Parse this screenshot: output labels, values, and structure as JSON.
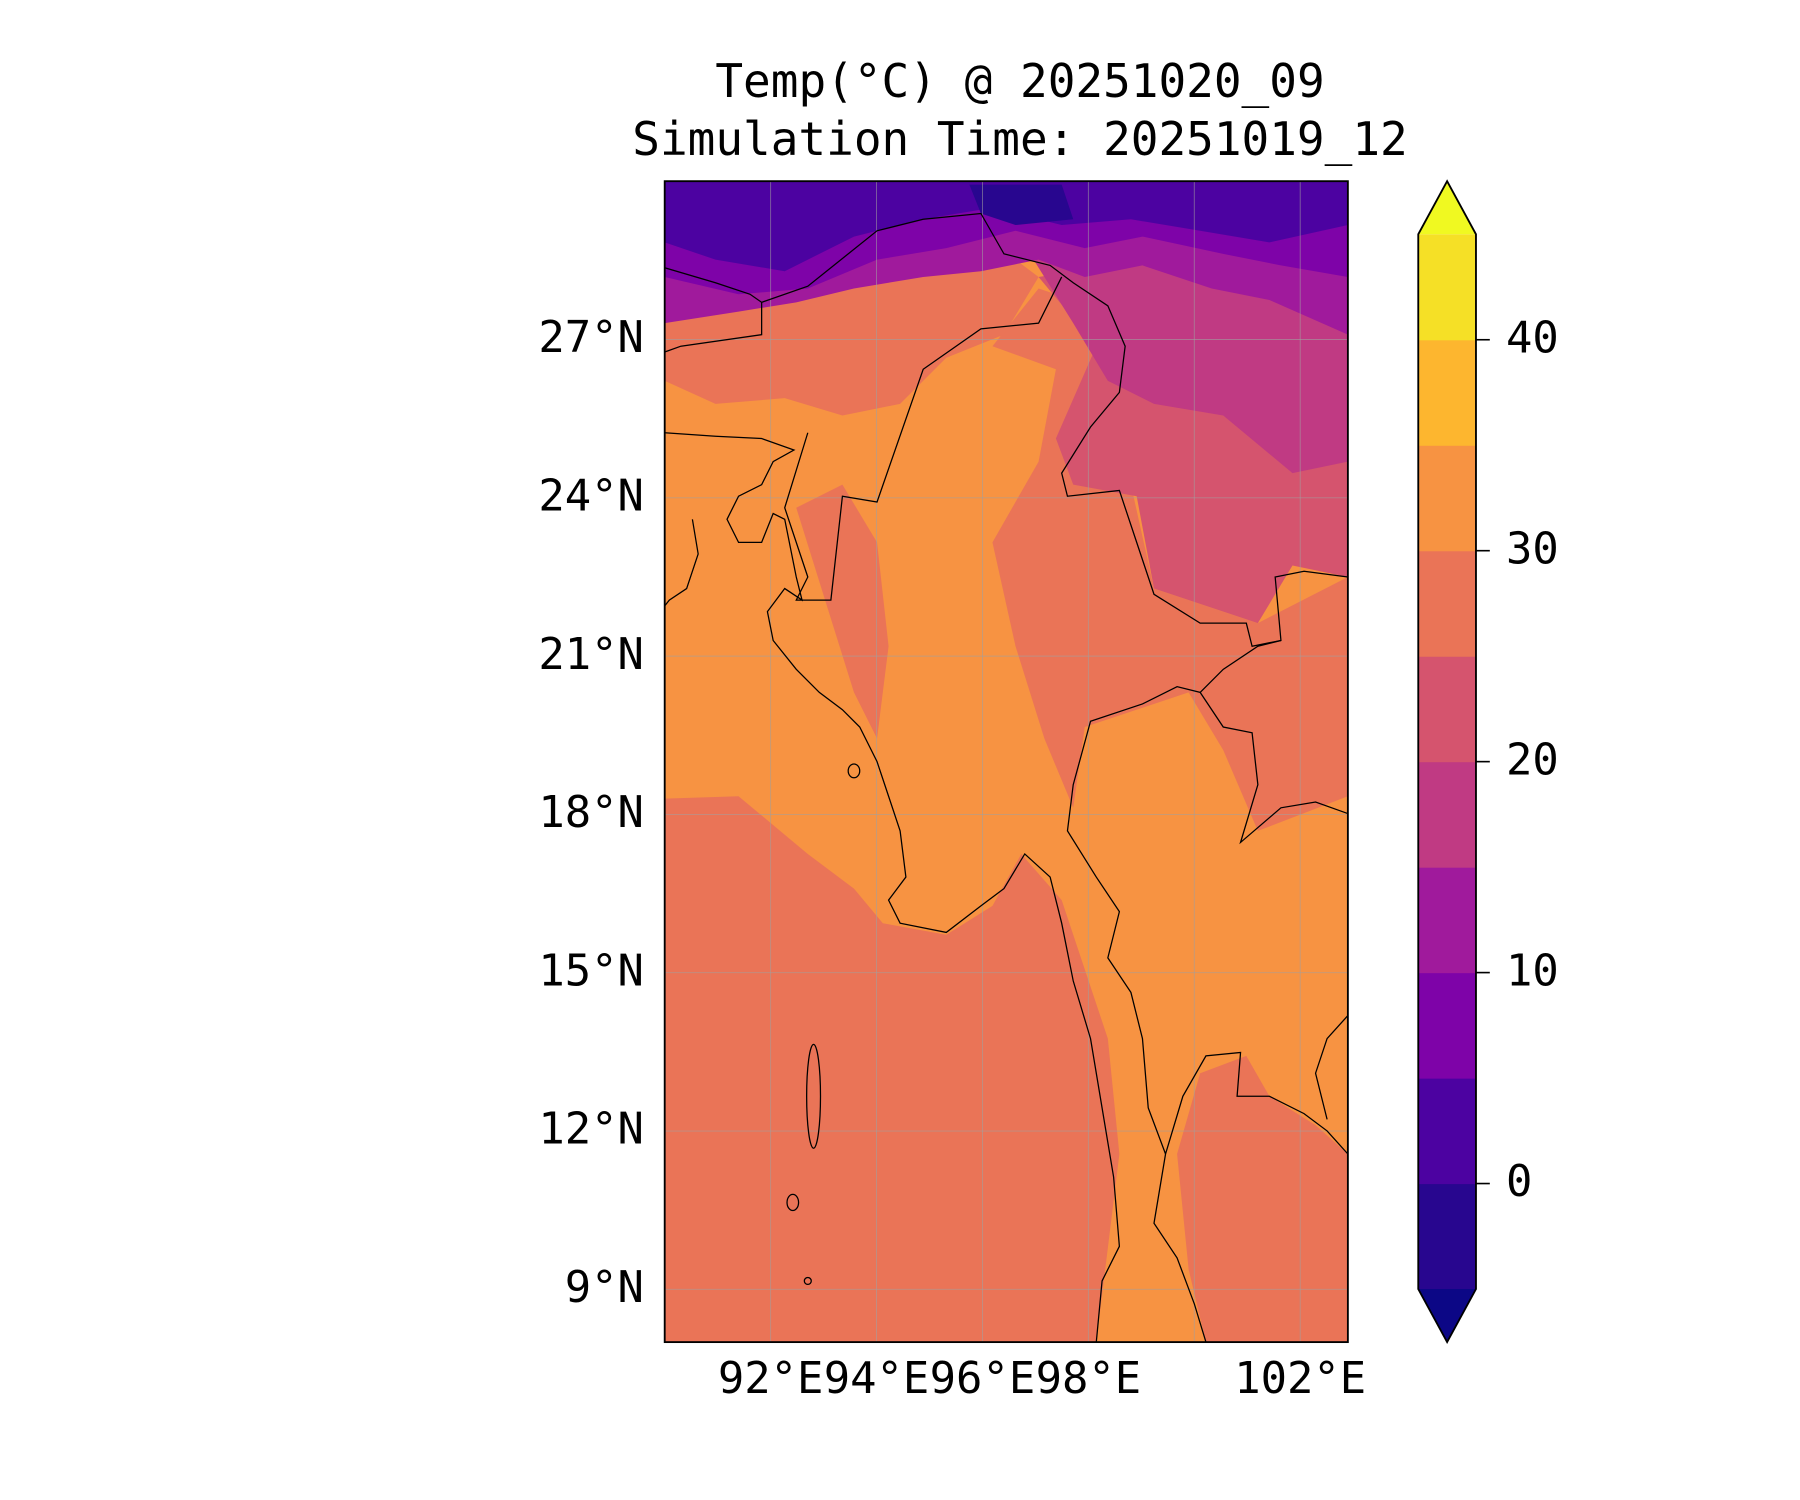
{
  "title": "Temp(°C) @ 20251020_09",
  "subtitle": "Simulation Time: 20251019_12",
  "chart_data": {
    "type": "heatmap",
    "variable": "Temperature",
    "units": "°C",
    "valid_time": "20251020_09",
    "simulation_time": "20251019_12",
    "lon_range": [
      90,
      102.9
    ],
    "lat_range": [
      8,
      30
    ],
    "lon_ticks": [
      92,
      94,
      96,
      98,
      102
    ],
    "lon_tick_labels": [
      "92°E",
      "94°E",
      "96°E",
      "98°E",
      "102°E"
    ],
    "lat_ticks": [
      27,
      24,
      21,
      18,
      15,
      12,
      9
    ],
    "lat_tick_labels": [
      "27°N",
      "24°N",
      "21°N",
      "18°N",
      "15°N",
      "12°N",
      "9°N"
    ],
    "grid": true,
    "colorbar": {
      "levels": [
        -5,
        0,
        5,
        10,
        15,
        20,
        25,
        30,
        35,
        40,
        45
      ],
      "colors": [
        "#28068f",
        "#4c02a1",
        "#7e03a8",
        "#a01a9c",
        "#c03a83",
        "#d5546e",
        "#ea7457",
        "#f79342",
        "#fdb62f",
        "#f5e026"
      ],
      "under_color": "#0c0786",
      "over_color": "#f0f921",
      "ticks": [
        0,
        10,
        20,
        30,
        40
      ],
      "tick_labels": [
        "0",
        "10",
        "20",
        "30",
        "40"
      ],
      "extend": "both",
      "placement": "right"
    },
    "field_summary": {
      "bay_of_bengal_north": "30-35",
      "ocean_south": "25-30",
      "central_myanmar_lowlands": "30-35",
      "northern_mountains": "-5 to 15",
      "yunnan_highlands": "15-25"
    }
  }
}
